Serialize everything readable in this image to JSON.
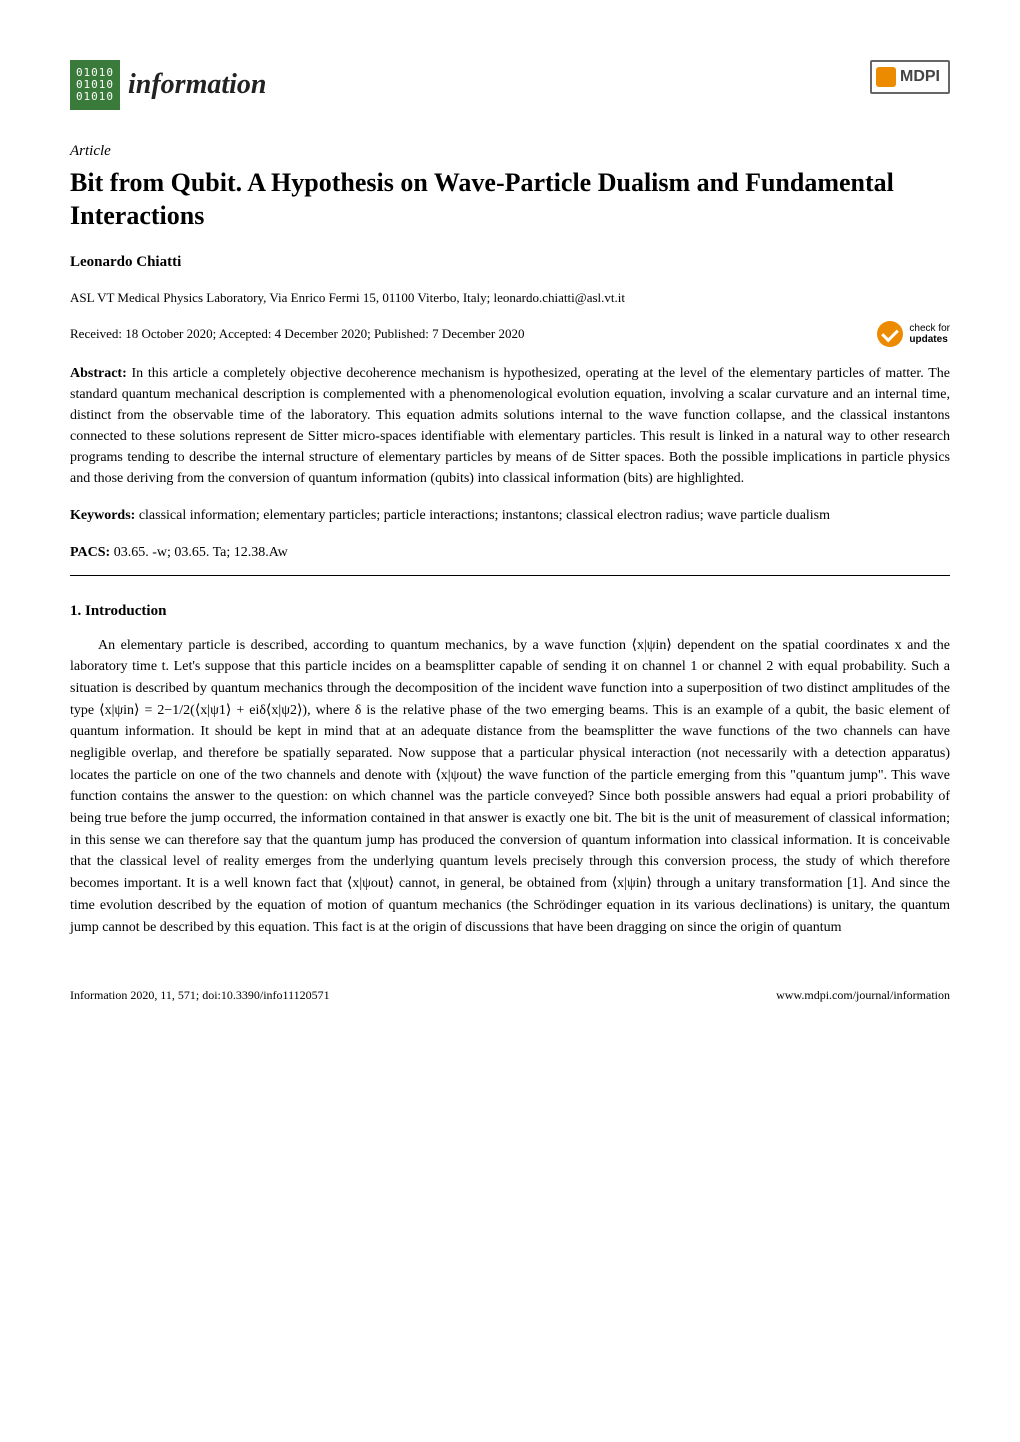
{
  "journal": {
    "icon_lines": [
      "01010",
      "01010",
      "01010"
    ],
    "name": "information",
    "publisher": "MDPI"
  },
  "article": {
    "type": "Article",
    "title": "Bit from Qubit. A Hypothesis on Wave-Particle Dualism and Fundamental Interactions",
    "author": "Leonardo Chiatti",
    "affiliation": "ASL VT Medical Physics Laboratory, Via Enrico Fermi 15, 01100 Viterbo, Italy; leonardo.chiatti@asl.vt.it",
    "dates": "Received: 18 October 2020; Accepted: 4 December 2020; Published: 7 December 2020",
    "check_updates_line1": "check for",
    "check_updates_line2": "updates"
  },
  "abstract": {
    "label": "Abstract:",
    "text": "In this article a completely objective decoherence mechanism is hypothesized, operating at the level of the elementary particles of matter. The standard quantum mechanical description is complemented with a phenomenological evolution equation, involving a scalar curvature and an internal time, distinct from the observable time of the laboratory. This equation admits solutions internal to the wave function collapse, and the classical instantons connected to these solutions represent de Sitter micro-spaces identifiable with elementary particles. This result is linked in a natural way to other research programs tending to describe the internal structure of elementary particles by means of de Sitter spaces. Both the possible implications in particle physics and those deriving from the conversion of quantum information (qubits) into classical information (bits) are highlighted."
  },
  "keywords": {
    "label": "Keywords:",
    "text": "classical information; elementary particles; particle interactions; instantons; classical electron radius; wave particle dualism"
  },
  "pacs": {
    "label": "PACS:",
    "text": "03.65. -w; 03.65. Ta; 12.38.Aw"
  },
  "section": {
    "heading": "1. Introduction",
    "body": "An elementary particle is described, according to quantum mechanics, by a wave function ⟨x|ψin⟩ dependent on the spatial coordinates x and the laboratory time t. Let's suppose that this particle incides on a beamsplitter capable of sending it on channel 1 or channel 2 with equal probability. Such a situation is described by quantum mechanics through the decomposition of the incident wave function into a superposition of two distinct amplitudes of the type ⟨x|ψin⟩ = 2−1/2(⟨x|ψ1⟩ + eiδ⟨x|ψ2⟩), where δ is the relative phase of the two emerging beams. This is an example of a qubit, the basic element of quantum information. It should be kept in mind that at an adequate distance from the beamsplitter the wave functions of the two channels can have negligible overlap, and therefore be spatially separated. Now suppose that a particular physical interaction (not necessarily with a detection apparatus) locates the particle on one of the two channels and denote with ⟨x|ψout⟩ the wave function of the particle emerging from this \"quantum jump\". This wave function contains the answer to the question: on which channel was the particle conveyed? Since both possible answers had equal a priori probability of being true before the jump occurred, the information contained in that answer is exactly one bit. The bit is the unit of measurement of classical information; in this sense we can therefore say that the quantum jump has produced the conversion of quantum information into classical information. It is conceivable that the classical level of reality emerges from the underlying quantum levels precisely through this conversion process, the study of which therefore becomes important. It is a well known fact that ⟨x|ψout⟩ cannot, in general, be obtained from ⟨x|ψin⟩ through a unitary transformation [1]. And since the time evolution described by the equation of motion of quantum mechanics (the Schrödinger equation in its various declinations) is unitary, the quantum jump cannot be described by this equation. This fact is at the origin of discussions that have been dragging on since the origin of quantum"
  },
  "footer": {
    "left": "Information 2020, 11, 571; doi:10.3390/info11120571",
    "right": "www.mdpi.com/journal/information"
  },
  "colors": {
    "journal_icon_bg": "#3a7a3a",
    "mdpi_orange": "#ed8b00",
    "text": "#000000",
    "background": "#ffffff"
  }
}
